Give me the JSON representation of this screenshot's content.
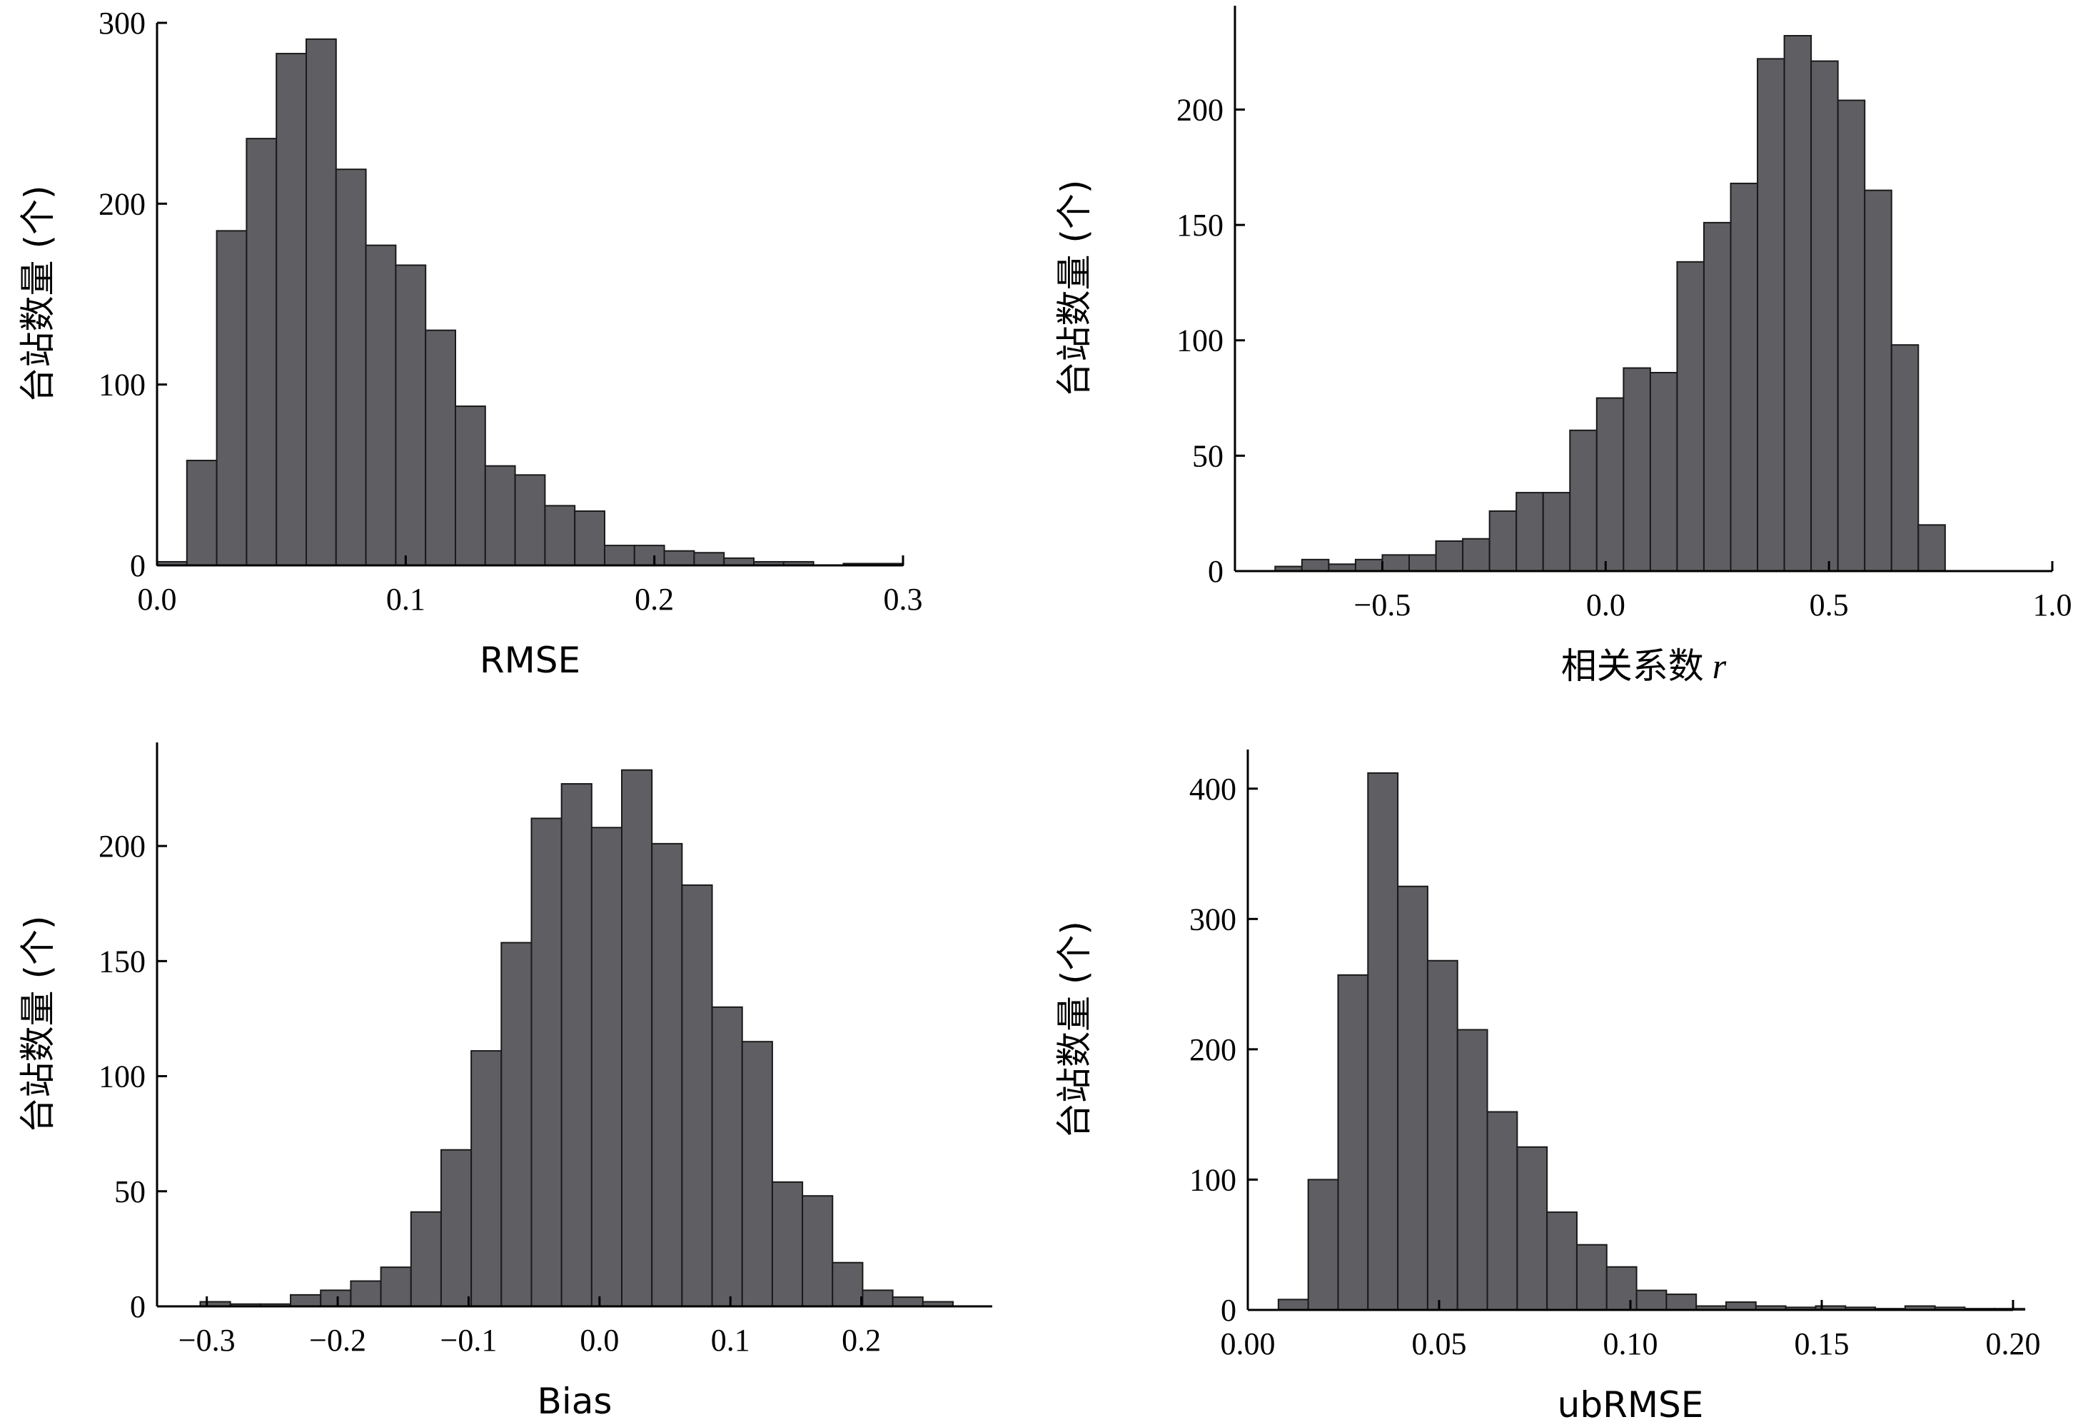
{
  "chart_data": [
    {
      "type": "bar",
      "title": "",
      "xlabel": "RMSE",
      "xlabel_italic": "",
      "ylabel": "台站数量 (个)",
      "xlim": [
        0.0,
        0.3
      ],
      "ylim": [
        0,
        300
      ],
      "xticks": [
        0.0,
        0.1,
        0.2,
        0.3
      ],
      "xtick_labels": [
        "0.0",
        "0.1",
        "0.2",
        "0.3"
      ],
      "yticks": [
        0,
        100,
        200,
        300
      ],
      "ytick_labels": [
        "0",
        "100",
        "200",
        "300"
      ],
      "grid": false,
      "bins": [
        {
          "x0": 0.0,
          "x1": 0.012,
          "value": 2
        },
        {
          "x0": 0.012,
          "x1": 0.024,
          "value": 58
        },
        {
          "x0": 0.024,
          "x1": 0.036,
          "value": 185
        },
        {
          "x0": 0.036,
          "x1": 0.048,
          "value": 236
        },
        {
          "x0": 0.048,
          "x1": 0.06,
          "value": 283
        },
        {
          "x0": 0.06,
          "x1": 0.072,
          "value": 291
        },
        {
          "x0": 0.072,
          "x1": 0.084,
          "value": 219
        },
        {
          "x0": 0.084,
          "x1": 0.096,
          "value": 177
        },
        {
          "x0": 0.096,
          "x1": 0.108,
          "value": 166
        },
        {
          "x0": 0.108,
          "x1": 0.12,
          "value": 130
        },
        {
          "x0": 0.12,
          "x1": 0.132,
          "value": 88
        },
        {
          "x0": 0.132,
          "x1": 0.144,
          "value": 55
        },
        {
          "x0": 0.144,
          "x1": 0.156,
          "value": 50
        },
        {
          "x0": 0.156,
          "x1": 0.168,
          "value": 33
        },
        {
          "x0": 0.168,
          "x1": 0.18,
          "value": 30
        },
        {
          "x0": 0.18,
          "x1": 0.192,
          "value": 11
        },
        {
          "x0": 0.192,
          "x1": 0.204,
          "value": 11
        },
        {
          "x0": 0.204,
          "x1": 0.216,
          "value": 8
        },
        {
          "x0": 0.216,
          "x1": 0.228,
          "value": 7
        },
        {
          "x0": 0.228,
          "x1": 0.24,
          "value": 4
        },
        {
          "x0": 0.24,
          "x1": 0.252,
          "value": 2
        },
        {
          "x0": 0.252,
          "x1": 0.264,
          "value": 2
        },
        {
          "x0": 0.264,
          "x1": 0.276,
          "value": 0
        },
        {
          "x0": 0.276,
          "x1": 0.288,
          "value": 1
        },
        {
          "x0": 0.288,
          "x1": 0.3,
          "value": 1
        }
      ]
    },
    {
      "type": "bar",
      "title": "",
      "xlabel": "相关系数",
      "xlabel_italic": "r",
      "ylabel": "台站数量 (个)",
      "xlim": [
        -0.83,
        1.0
      ],
      "ylim": [
        0,
        245
      ],
      "xticks": [
        -0.5,
        0.0,
        0.5,
        1.0
      ],
      "xtick_labels": [
        "−0.5",
        "0.0",
        "0.5",
        "1.0"
      ],
      "yticks": [
        0,
        50,
        100,
        150,
        200
      ],
      "ytick_labels": [
        "0",
        "50",
        "100",
        "150",
        "200"
      ],
      "grid": false,
      "bins": [
        {
          "x0": -0.74,
          "x1": -0.68,
          "value": 2
        },
        {
          "x0": -0.68,
          "x1": -0.62,
          "value": 5
        },
        {
          "x0": -0.62,
          "x1": -0.56,
          "value": 3
        },
        {
          "x0": -0.56,
          "x1": -0.5,
          "value": 5
        },
        {
          "x0": -0.5,
          "x1": -0.44,
          "value": 7
        },
        {
          "x0": -0.44,
          "x1": -0.38,
          "value": 7
        },
        {
          "x0": -0.38,
          "x1": -0.32,
          "value": 13
        },
        {
          "x0": -0.32,
          "x1": -0.26,
          "value": 14
        },
        {
          "x0": -0.26,
          "x1": -0.2,
          "value": 26
        },
        {
          "x0": -0.2,
          "x1": -0.14,
          "value": 34
        },
        {
          "x0": -0.14,
          "x1": -0.08,
          "value": 34
        },
        {
          "x0": -0.08,
          "x1": -0.02,
          "value": 61
        },
        {
          "x0": -0.02,
          "x1": 0.04,
          "value": 75
        },
        {
          "x0": 0.04,
          "x1": 0.1,
          "value": 88
        },
        {
          "x0": 0.1,
          "x1": 0.16,
          "value": 86
        },
        {
          "x0": 0.16,
          "x1": 0.22,
          "value": 134
        },
        {
          "x0": 0.22,
          "x1": 0.28,
          "value": 151
        },
        {
          "x0": 0.28,
          "x1": 0.34,
          "value": 168
        },
        {
          "x0": 0.34,
          "x1": 0.4,
          "value": 222
        },
        {
          "x0": 0.4,
          "x1": 0.46,
          "value": 232
        },
        {
          "x0": 0.46,
          "x1": 0.52,
          "value": 221
        },
        {
          "x0": 0.52,
          "x1": 0.58,
          "value": 204
        },
        {
          "x0": 0.58,
          "x1": 0.64,
          "value": 165
        },
        {
          "x0": 0.64,
          "x1": 0.7,
          "value": 98
        },
        {
          "x0": 0.7,
          "x1": 0.76,
          "value": 20
        }
      ]
    },
    {
      "type": "bar",
      "title": "",
      "xlabel": "Bias",
      "xlabel_italic": "",
      "ylabel": "台站数量 (个)",
      "xlim": [
        -0.338,
        0.3
      ],
      "ylim": [
        0,
        245
      ],
      "xticks": [
        -0.3,
        -0.2,
        -0.1,
        0.0,
        0.1,
        0.2
      ],
      "xtick_labels": [
        "−0.3",
        "−0.2",
        "−0.1",
        "0.0",
        "0.1",
        "0.2"
      ],
      "yticks": [
        0,
        50,
        100,
        150,
        200
      ],
      "ytick_labels": [
        "0",
        "50",
        "100",
        "150",
        "200"
      ],
      "grid": false,
      "bins": [
        {
          "x0": -0.305,
          "x1": -0.282,
          "value": 2
        },
        {
          "x0": -0.282,
          "x1": -0.259,
          "value": 1
        },
        {
          "x0": -0.259,
          "x1": -0.236,
          "value": 1
        },
        {
          "x0": -0.236,
          "x1": -0.213,
          "value": 5
        },
        {
          "x0": -0.213,
          "x1": -0.19,
          "value": 7
        },
        {
          "x0": -0.19,
          "x1": -0.167,
          "value": 11
        },
        {
          "x0": -0.167,
          "x1": -0.144,
          "value": 17
        },
        {
          "x0": -0.144,
          "x1": -0.121,
          "value": 41
        },
        {
          "x0": -0.121,
          "x1": -0.098,
          "value": 68
        },
        {
          "x0": -0.098,
          "x1": -0.075,
          "value": 111
        },
        {
          "x0": -0.075,
          "x1": -0.052,
          "value": 158
        },
        {
          "x0": -0.052,
          "x1": -0.029,
          "value": 212
        },
        {
          "x0": -0.029,
          "x1": -0.006,
          "value": 227
        },
        {
          "x0": -0.006,
          "x1": 0.017,
          "value": 208
        },
        {
          "x0": 0.017,
          "x1": 0.04,
          "value": 233
        },
        {
          "x0": 0.04,
          "x1": 0.063,
          "value": 201
        },
        {
          "x0": 0.063,
          "x1": 0.086,
          "value": 183
        },
        {
          "x0": 0.086,
          "x1": 0.109,
          "value": 130
        },
        {
          "x0": 0.109,
          "x1": 0.132,
          "value": 115
        },
        {
          "x0": 0.132,
          "x1": 0.155,
          "value": 54
        },
        {
          "x0": 0.155,
          "x1": 0.178,
          "value": 48
        },
        {
          "x0": 0.178,
          "x1": 0.201,
          "value": 19
        },
        {
          "x0": 0.201,
          "x1": 0.224,
          "value": 7
        },
        {
          "x0": 0.224,
          "x1": 0.247,
          "value": 4
        },
        {
          "x0": 0.247,
          "x1": 0.27,
          "value": 2
        }
      ]
    },
    {
      "type": "bar",
      "title": "",
      "xlabel": "ubRMSE",
      "xlabel_italic": "",
      "ylabel": "台站数量 (个)",
      "xlim": [
        0.0,
        0.2
      ],
      "ylim": [
        0,
        430
      ],
      "xticks": [
        0.0,
        0.05,
        0.1,
        0.15,
        0.2
      ],
      "xtick_labels": [
        "0.00",
        "0.05",
        "0.10",
        "0.15",
        "0.20"
      ],
      "yticks": [
        0,
        100,
        200,
        300,
        400
      ],
      "ytick_labels": [
        "0",
        "100",
        "200",
        "300",
        "400"
      ],
      "grid": false,
      "bins": [
        {
          "x0": 0.008,
          "x1": 0.0158,
          "value": 8
        },
        {
          "x0": 0.0158,
          "x1": 0.0236,
          "value": 100
        },
        {
          "x0": 0.0236,
          "x1": 0.0314,
          "value": 257
        },
        {
          "x0": 0.0314,
          "x1": 0.0392,
          "value": 412
        },
        {
          "x0": 0.0392,
          "x1": 0.047,
          "value": 325
        },
        {
          "x0": 0.047,
          "x1": 0.0548,
          "value": 268
        },
        {
          "x0": 0.0548,
          "x1": 0.0626,
          "value": 215
        },
        {
          "x0": 0.0626,
          "x1": 0.0704,
          "value": 152
        },
        {
          "x0": 0.0704,
          "x1": 0.0782,
          "value": 125
        },
        {
          "x0": 0.0782,
          "x1": 0.086,
          "value": 75
        },
        {
          "x0": 0.086,
          "x1": 0.0938,
          "value": 50
        },
        {
          "x0": 0.0938,
          "x1": 0.1016,
          "value": 33
        },
        {
          "x0": 0.1016,
          "x1": 0.1094,
          "value": 15
        },
        {
          "x0": 0.1094,
          "x1": 0.1172,
          "value": 12
        },
        {
          "x0": 0.1172,
          "x1": 0.125,
          "value": 3
        },
        {
          "x0": 0.125,
          "x1": 0.1328,
          "value": 6
        },
        {
          "x0": 0.1328,
          "x1": 0.1406,
          "value": 3
        },
        {
          "x0": 0.1406,
          "x1": 0.1484,
          "value": 2
        },
        {
          "x0": 0.1484,
          "x1": 0.1562,
          "value": 3
        },
        {
          "x0": 0.1562,
          "x1": 0.164,
          "value": 2
        },
        {
          "x0": 0.164,
          "x1": 0.1718,
          "value": 1
        },
        {
          "x0": 0.1718,
          "x1": 0.1796,
          "value": 3
        },
        {
          "x0": 0.1796,
          "x1": 0.1874,
          "value": 2
        },
        {
          "x0": 0.1874,
          "x1": 0.1952,
          "value": 1
        },
        {
          "x0": 0.1952,
          "x1": 0.203,
          "value": 1
        }
      ]
    }
  ]
}
